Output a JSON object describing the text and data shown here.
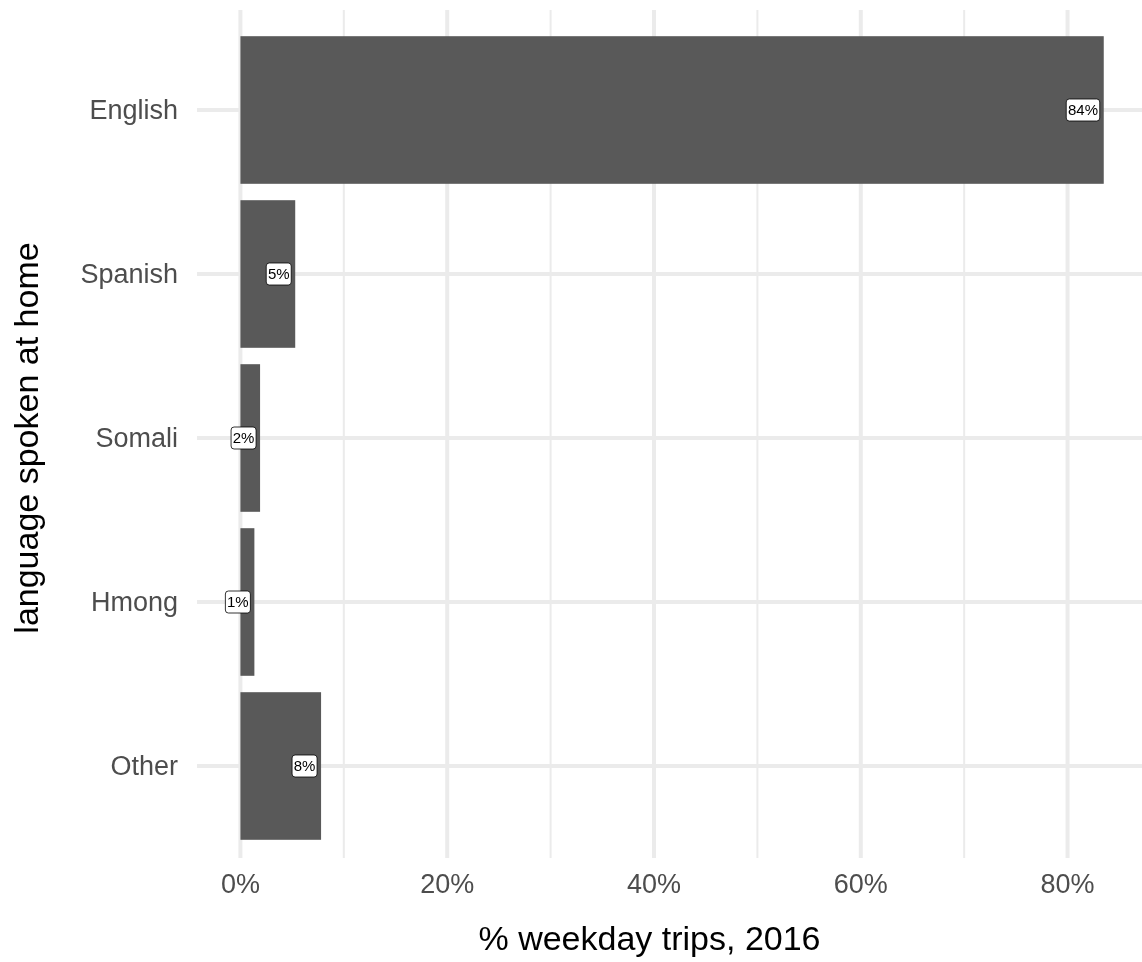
{
  "chart_data": {
    "type": "bar",
    "orientation": "horizontal",
    "xlabel": "% weekday trips, 2016",
    "ylabel": "language spoken at home",
    "categories": [
      "English",
      "Spanish",
      "Somali",
      "Hmong",
      "Other"
    ],
    "values": [
      83.5,
      5.3,
      1.9,
      1.35,
      7.8
    ],
    "value_labels": [
      "84%",
      "5%",
      "2%",
      "1%",
      "8%"
    ],
    "color": "#595959",
    "xlim": [
      -4.2,
      87.2
    ],
    "xticks": [
      {
        "value": 0,
        "label": "0%"
      },
      {
        "value": 10,
        "label": null
      },
      {
        "value": 20,
        "label": "20%"
      },
      {
        "value": 30,
        "label": null
      },
      {
        "value": 40,
        "label": "40%"
      },
      {
        "value": 50,
        "label": null
      },
      {
        "value": 60,
        "label": "60%"
      },
      {
        "value": 70,
        "label": null
      },
      {
        "value": 80,
        "label": "80%"
      }
    ],
    "grid": true
  }
}
